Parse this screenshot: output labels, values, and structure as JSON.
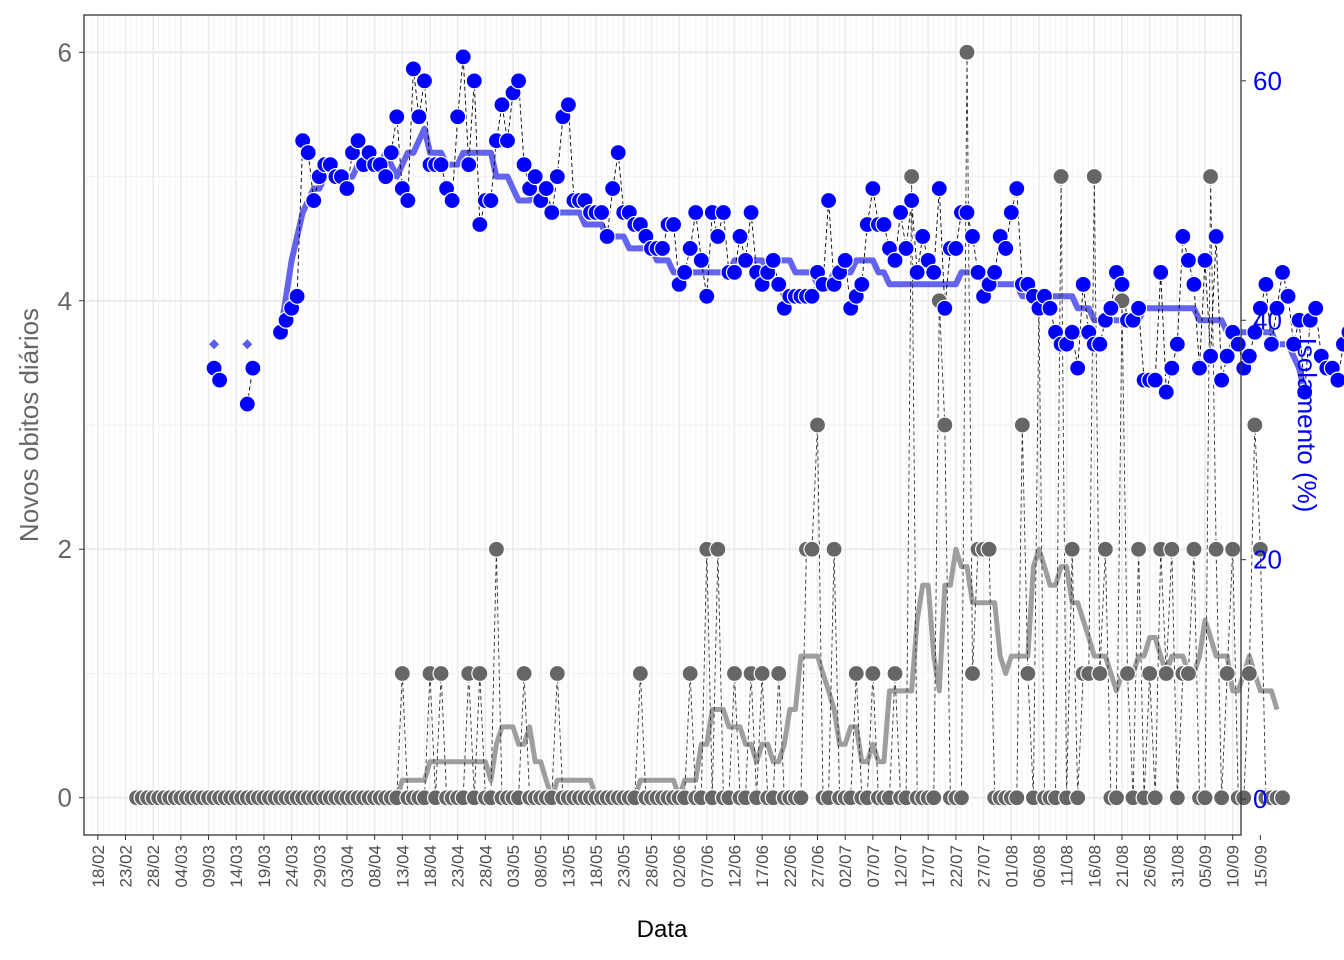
{
  "chart_data": {
    "type": "line",
    "title": "",
    "xlabel": "Data",
    "ylabel": "Novos obitos diários",
    "y2label": "Isolamento (%)",
    "ylim": [
      -0.3,
      6.3
    ],
    "y2lim": [
      -3.0,
      65.5
    ],
    "yticks": [
      0,
      2,
      4,
      6
    ],
    "y2ticks": [
      0,
      20,
      40,
      60
    ],
    "x_start_date": "2020-02-18",
    "xlim_days": [
      -2.5,
      206.5
    ],
    "xtick_labels": [
      "18/02",
      "23/02",
      "28/02",
      "04/03",
      "09/03",
      "14/03",
      "19/03",
      "24/03",
      "29/03",
      "03/04",
      "08/04",
      "13/04",
      "18/04",
      "23/04",
      "28/04",
      "03/05",
      "08/05",
      "13/05",
      "18/05",
      "23/05",
      "28/05",
      "02/06",
      "07/06",
      "12/06",
      "17/06",
      "22/06",
      "27/06",
      "02/07",
      "07/07",
      "12/07",
      "17/07",
      "22/07",
      "27/07",
      "01/08",
      "06/08",
      "11/08",
      "16/08",
      "21/08",
      "26/08",
      "31/08",
      "05/09",
      "10/09",
      "15/09"
    ],
    "grid": true,
    "legend": "none",
    "colors": {
      "deaths": "#666666",
      "deaths_ma": "#999999",
      "isolation": "#0000ff",
      "isolation_ma": "#5b5bef",
      "y2axis": "#0000ff"
    },
    "series": [
      {
        "name": "Novos obitos diários",
        "axis": "left",
        "start_day": 7,
        "values": [
          0,
          0,
          0,
          0,
          0,
          0,
          0,
          0,
          0,
          0,
          0,
          0,
          0,
          0,
          0,
          0,
          0,
          0,
          0,
          0,
          0,
          0,
          0,
          0,
          0,
          0,
          0,
          0,
          0,
          0,
          0,
          0,
          0,
          0,
          0,
          0,
          0,
          0,
          0,
          0,
          0,
          0,
          0,
          0,
          0,
          0,
          0,
          0,
          1,
          0,
          0,
          0,
          0,
          1,
          0,
          1,
          0,
          0,
          0,
          0,
          1,
          0,
          1,
          0,
          0,
          2,
          0,
          0,
          0,
          0,
          1,
          0,
          0,
          0,
          0,
          0,
          1,
          0,
          0,
          0,
          0,
          0,
          0,
          0,
          0,
          0,
          0,
          0,
          0,
          0,
          0,
          1,
          0,
          0,
          0,
          0,
          0,
          0,
          0,
          0,
          1,
          0,
          0,
          2,
          0,
          2,
          0,
          0,
          1,
          0,
          0,
          1,
          0,
          1,
          0,
          0,
          1,
          0,
          0,
          0,
          0,
          2,
          2,
          3,
          0,
          0,
          2,
          0,
          0,
          0,
          1,
          0,
          0,
          1,
          0,
          0,
          0,
          1,
          0,
          0,
          5,
          0,
          0,
          0,
          0,
          4,
          3,
          0,
          0,
          0,
          6,
          1,
          2,
          2,
          2,
          0,
          0,
          0,
          0,
          0,
          3,
          1,
          0,
          4,
          0,
          0,
          0,
          5,
          0,
          2,
          0,
          1,
          1,
          5,
          1,
          2,
          0,
          0,
          4,
          1,
          0,
          2,
          0,
          1,
          0,
          2,
          1,
          2,
          0,
          1,
          1,
          2,
          0,
          0,
          5,
          2,
          0,
          1,
          2,
          0,
          0,
          1,
          3,
          2,
          0,
          0,
          0,
          0
        ]
      },
      {
        "name": "Isolamento (%)",
        "axis": "right",
        "start_day": 21,
        "values": [
          36,
          35,
          null,
          null,
          null,
          null,
          33,
          36,
          null,
          null,
          null,
          null,
          39,
          40,
          41,
          42,
          55,
          54,
          50,
          52,
          53,
          53,
          52,
          52,
          51,
          54,
          55,
          53,
          54,
          53,
          53,
          52,
          54,
          57,
          51,
          50,
          61,
          57,
          60,
          53,
          53,
          53,
          51,
          50,
          57,
          62,
          53,
          60,
          48,
          50,
          50,
          55,
          58,
          55,
          59,
          60,
          53,
          51,
          52,
          50,
          51,
          49,
          52,
          57,
          58,
          50,
          50,
          50,
          49,
          49,
          49,
          47,
          51,
          54,
          49,
          49,
          48,
          48,
          47,
          46,
          46,
          46,
          48,
          48,
          43,
          44,
          46,
          49,
          45,
          42,
          49,
          47,
          49,
          44,
          44,
          47,
          45,
          49,
          44,
          43,
          44,
          45,
          43,
          41,
          42,
          42,
          42,
          42,
          42,
          44,
          43,
          50,
          43,
          44,
          45,
          41,
          42,
          43,
          48,
          51,
          48,
          48,
          46,
          45,
          49,
          46,
          50,
          44,
          47,
          45,
          44,
          51,
          41,
          46,
          46,
          49,
          49,
          47,
          44,
          42,
          43,
          44,
          47,
          46,
          49,
          51,
          43,
          43,
          42,
          41,
          42,
          41,
          39,
          38,
          38,
          39,
          36,
          43,
          39,
          38,
          38,
          40,
          41,
          44,
          43,
          40,
          40,
          41,
          35,
          35,
          35,
          44,
          34,
          36,
          38,
          47,
          45,
          43,
          36,
          45,
          37,
          47,
          35,
          37,
          39,
          38,
          36,
          37,
          39,
          41,
          43,
          38,
          41,
          44,
          42,
          38,
          40,
          34,
          40,
          41,
          37,
          36,
          36,
          35,
          38,
          39
        ]
      }
    ],
    "moving_averages": [
      {
        "of": "Novos obitos diários",
        "axis": "left",
        "start_day": 7,
        "values": [
          0,
          0,
          0,
          0,
          0,
          0,
          0,
          0,
          0,
          0,
          0,
          0,
          0,
          0,
          0,
          0,
          0,
          0,
          0,
          0,
          0,
          0,
          0,
          0,
          0,
          0,
          0,
          0,
          0,
          0,
          0,
          0,
          0,
          0,
          0,
          0,
          0,
          0,
          0,
          0,
          0,
          0,
          0,
          0,
          0,
          0,
          0,
          0,
          0.14,
          0.14,
          0.14,
          0.14,
          0.14,
          0.29,
          0.29,
          0.29,
          0.29,
          0.29,
          0.29,
          0.29,
          0.29,
          0.29,
          0.29,
          0.29,
          0.14,
          0.43,
          0.57,
          0.57,
          0.57,
          0.43,
          0.43,
          0.57,
          0.29,
          0.29,
          0.14,
          0,
          0.14,
          0.14,
          0.14,
          0.14,
          0.14,
          0.14,
          0.14,
          0,
          0,
          0,
          0,
          0,
          0,
          0,
          0,
          0.14,
          0.14,
          0.14,
          0.14,
          0.14,
          0.14,
          0.14,
          0,
          0.14,
          0.14,
          0.14,
          0.43,
          0.43,
          0.71,
          0.71,
          0.71,
          0.57,
          0.57,
          0.57,
          0.43,
          0.43,
          0.29,
          0.43,
          0.43,
          0.29,
          0.29,
          0.43,
          0.71,
          0.71,
          1.14,
          1.14,
          1.14,
          1.14,
          1,
          0.86,
          0.71,
          0.43,
          0.43,
          0.57,
          0.57,
          0.29,
          0.29,
          0.43,
          0.29,
          0.29,
          0.86,
          0.86,
          0.86,
          0.86,
          0.86,
          1.43,
          1.71,
          1.71,
          1.14,
          0.86,
          1.71,
          1.71,
          2,
          1.86,
          1.86,
          1.57,
          1.57,
          1.57,
          1.57,
          1.57,
          1.14,
          1,
          1.14,
          1.14,
          1.14,
          1.14,
          1.86,
          2,
          1.86,
          1.71,
          1.71,
          1.86,
          1.86,
          1.57,
          1.57,
          1.43,
          1.29,
          1.14,
          1.14,
          1.14,
          1,
          0.86,
          1,
          1,
          1,
          1.14,
          1.14,
          1.29,
          1.29,
          1.14,
          1,
          1.14,
          1.14,
          1.14,
          1,
          1,
          1.14,
          1.43,
          1.29,
          1.14,
          1.14,
          1.14,
          0.86,
          0.86,
          1,
          1.14,
          1,
          0.86,
          0.86,
          0.86,
          0.71
        ]
      },
      {
        "of": "Isolamento (%)",
        "axis": "right",
        "start_day": 21,
        "values": [
          38,
          null,
          null,
          null,
          null,
          null,
          38,
          null,
          null,
          null,
          null,
          null,
          null,
          null,
          null,
          null,
          null,
          null,
          null,
          null,
          null,
          null,
          null,
          null,
          null,
          null,
          null,
          null,
          null,
          null,
          null,
          null,
          null,
          null,
          null,
          null,
          null,
          null,
          null,
          null,
          null,
          null,
          null,
          null,
          null,
          null,
          null,
          null,
          null,
          null,
          null,
          null,
          null,
          null,
          null,
          null,
          null,
          null,
          null,
          null,
          null,
          null,
          null,
          null,
          null,
          null,
          null,
          null,
          null,
          null,
          null,
          null,
          null,
          null,
          null,
          null,
          null,
          null,
          null,
          null,
          null,
          null,
          null,
          null,
          null,
          null,
          null,
          null,
          null,
          null,
          null,
          null,
          null,
          null,
          null,
          null,
          null,
          null,
          null,
          null,
          null,
          null,
          null,
          null,
          null,
          null,
          null,
          null,
          null,
          null,
          null,
          null,
          null,
          null,
          null,
          null,
          null,
          null,
          null,
          null,
          null,
          null,
          null,
          null,
          null,
          null,
          null,
          null,
          null,
          null,
          null,
          null,
          null,
          null,
          null,
          null,
          null,
          null,
          null,
          null,
          null,
          null,
          null,
          null,
          null,
          null,
          null,
          null,
          null,
          null,
          null,
          null,
          null,
          null,
          null,
          null,
          null,
          null,
          null,
          null,
          null,
          null,
          null,
          null,
          null,
          null,
          null,
          null,
          null,
          null,
          null,
          null,
          null,
          null,
          null,
          null,
          null,
          null,
          null,
          null,
          null,
          null,
          null,
          null,
          null,
          null,
          null,
          null,
          null,
          null,
          null,
          null,
          null,
          null,
          null,
          null,
          null,
          null,
          null,
          null,
          null,
          null,
          null,
          null,
          null,
          null,
          null,
          null
        ],
        "segments": [
          {
            "start_day": 21,
            "values": [
              38
            ]
          },
          {
            "start_day": 27,
            "values": [
              38
            ]
          },
          {
            "start_day": 33,
            "values": [
              39,
              42,
              45,
              47,
              49,
              50,
              51,
              51,
              52,
              52,
              52,
              52,
              52,
              52,
              53,
              53,
              53,
              53,
              53,
              54,
              53,
              52,
              53,
              54,
              54,
              55,
              56,
              54,
              54,
              54,
              53,
              53,
              53,
              54,
              54,
              54,
              54,
              54,
              54,
              52,
              52,
              52,
              51,
              50,
              50,
              50,
              51,
              50,
              50,
              49,
              49,
              49,
              49,
              49,
              49,
              48,
              48,
              48,
              48,
              47,
              47,
              47,
              47,
              46,
              46,
              46,
              46,
              46,
              45,
              45,
              45,
              44,
              44,
              44,
              44,
              44,
              44,
              44,
              44,
              44,
              44,
              44,
              45,
              45,
              45,
              45,
              45,
              45,
              44,
              45,
              45,
              45,
              45,
              44,
              44,
              44,
              44,
              43,
              43,
              43,
              44,
              44,
              44,
              44,
              45,
              45,
              45,
              45,
              44,
              44,
              43,
              43,
              43,
              43,
              43,
              43,
              43,
              43,
              43,
              43,
              43,
              43,
              43,
              44,
              44,
              44,
              44,
              44,
              44,
              43,
              43,
              43,
              43,
              43,
              42,
              42,
              42,
              42,
              42,
              42,
              42,
              42,
              42,
              42,
              41,
              41,
              41,
              40,
              40,
              40,
              40,
              40,
              40,
              40,
              40,
              40,
              41,
              41,
              41,
              41,
              41,
              41,
              41,
              41,
              41,
              41,
              40,
              40,
              40,
              40,
              40,
              39,
              39,
              39,
              39,
              39,
              39,
              39,
              39,
              39,
              38,
              38,
              38,
              37,
              36,
              34
            ]
          }
        ]
      }
    ]
  }
}
